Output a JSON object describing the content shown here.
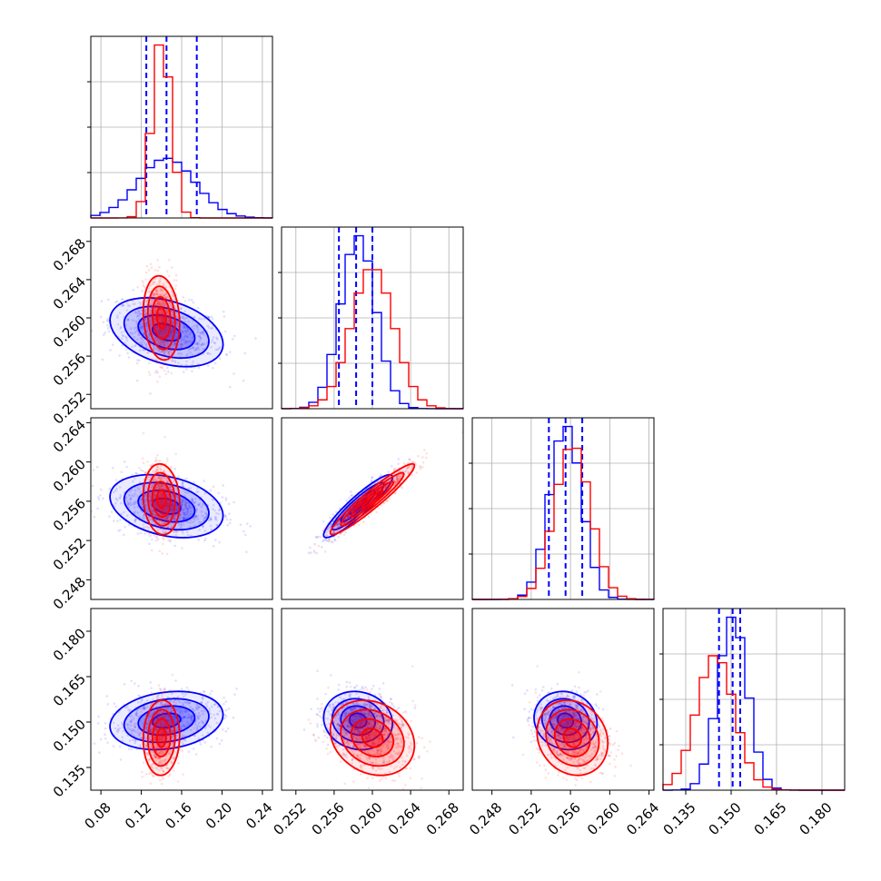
{
  "colors": {
    "series_a": "#0000ff",
    "series_b": "#ff0000",
    "grid": "#b0b0b0"
  },
  "chart_data": {
    "type": "corner",
    "title": "",
    "grid": true,
    "legend": "none",
    "parameters": [
      {
        "range": [
          0.07,
          0.25
        ],
        "ticks": [
          0.08,
          0.12,
          0.16,
          0.2,
          0.24
        ],
        "tick_labels": [
          "0.08",
          "0.12",
          "0.16",
          "0.20",
          "0.24"
        ]
      },
      {
        "range": [
          0.2505,
          0.2695
        ],
        "ticks": [
          0.252,
          0.256,
          0.26,
          0.264,
          0.268
        ],
        "tick_labels": [
          "0.252",
          "0.256",
          "0.260",
          "0.264",
          "0.268"
        ]
      },
      {
        "range": [
          0.246,
          0.2645
        ],
        "ticks": [
          0.248,
          0.252,
          0.256,
          0.26,
          0.264
        ],
        "tick_labels": [
          "0.248",
          "0.252",
          "0.256",
          "0.260",
          "0.264"
        ]
      },
      {
        "range": [
          0.1275,
          0.1875
        ],
        "ticks": [
          0.135,
          0.15,
          0.165,
          0.18
        ],
        "tick_labels": [
          "0.135",
          "0.150",
          "0.165",
          "0.180"
        ]
      }
    ],
    "series": [
      {
        "color": "#0000ff",
        "mean": [
          0.145,
          0.2585,
          0.2555,
          0.1505
        ],
        "sd": [
          0.028,
          0.0018,
          0.0016,
          0.0048
        ],
        "quantile_lines": [
          [
            0.125,
            0.145,
            0.175
          ],
          [
            0.2565,
            0.2583,
            0.26
          ],
          [
            0.2538,
            0.2555,
            0.2572
          ],
          [
            0.146,
            0.1505,
            0.153
          ]
        ],
        "corr": {
          "0-1": -0.35,
          "0-2": -0.3,
          "0-3": 0.2,
          "1-2": 0.92,
          "1-3": -0.1,
          "2-3": -0.1
        }
      },
      {
        "color": "#ff0000",
        "mean": [
          0.14,
          0.26,
          0.2562,
          0.1448
        ],
        "sd": [
          0.009,
          0.0022,
          0.0018,
          0.0062
        ],
        "quantile_lines": [],
        "corr": {
          "0-1": -0.15,
          "0-2": -0.1,
          "0-3": 0.05,
          "1-2": 0.95,
          "1-3": -0.2,
          "2-3": -0.15
        }
      }
    ]
  }
}
